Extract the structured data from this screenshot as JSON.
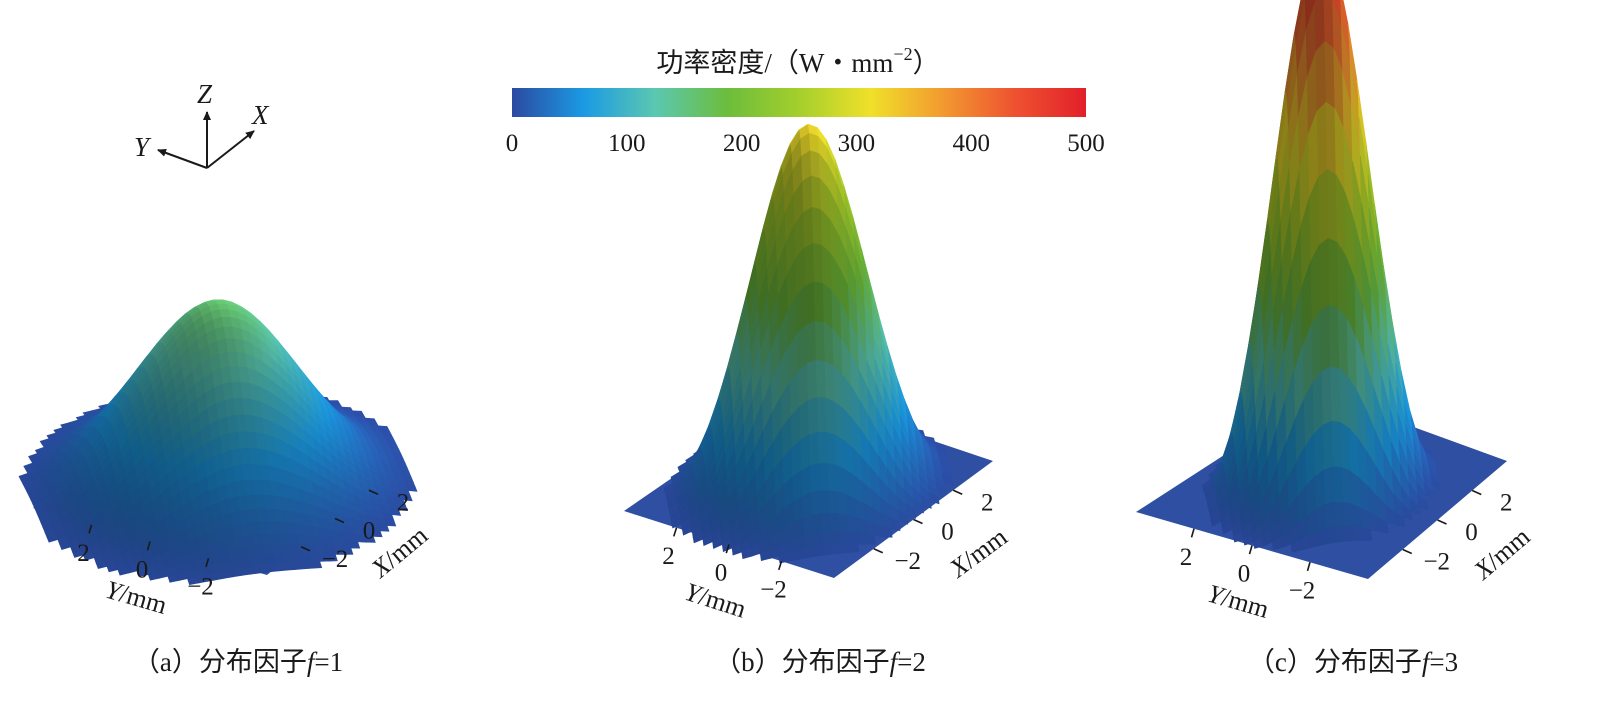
{
  "chart_data": {
    "type": "surface3d",
    "colorbar": {
      "label": "功率密度/（W・mm",
      "label_sup": "−2",
      "label_close": "）",
      "min": 0,
      "max": 500,
      "ticks": [
        "0",
        "100",
        "200",
        "300",
        "400",
        "500"
      ],
      "colors": [
        "#2b4aa0",
        "#1b9ae4",
        "#5bc8b0",
        "#6cbd3c",
        "#a4cf2c",
        "#f0e02a",
        "#f29a30",
        "#ee5230",
        "#e2202a"
      ]
    },
    "axes_indicator": {
      "x": "X",
      "y": "Y",
      "z": "Z"
    },
    "panels": [
      {
        "caption_prefix": "（a）分布因子",
        "caption_var": "f",
        "caption_suffix": "=1",
        "distribution_factor": 1,
        "peak": 160,
        "x_ticks": [
          "2",
          "0",
          "−2"
        ],
        "y_ticks": [
          "2",
          "0",
          "−2"
        ],
        "x_label": "X/mm",
        "y_label": "Y/mm"
      },
      {
        "caption_prefix": "（b）分布因子",
        "caption_var": "f",
        "caption_suffix": "=2",
        "distribution_factor": 2,
        "peak": 320,
        "x_ticks": [
          "2",
          "0",
          "−2"
        ],
        "y_ticks": [
          "2",
          "0",
          "−2"
        ],
        "x_label": "X/mm",
        "y_label": "Y/mm"
      },
      {
        "caption_prefix": "（c）分布因子",
        "caption_var": "f",
        "caption_suffix": "=3",
        "distribution_factor": 3,
        "peak": 480,
        "x_ticks": [
          "2",
          "0",
          "−2"
        ],
        "y_ticks": [
          "2",
          "0",
          "−2"
        ],
        "x_label": "X/mm",
        "y_label": "Y/mm"
      }
    ]
  }
}
